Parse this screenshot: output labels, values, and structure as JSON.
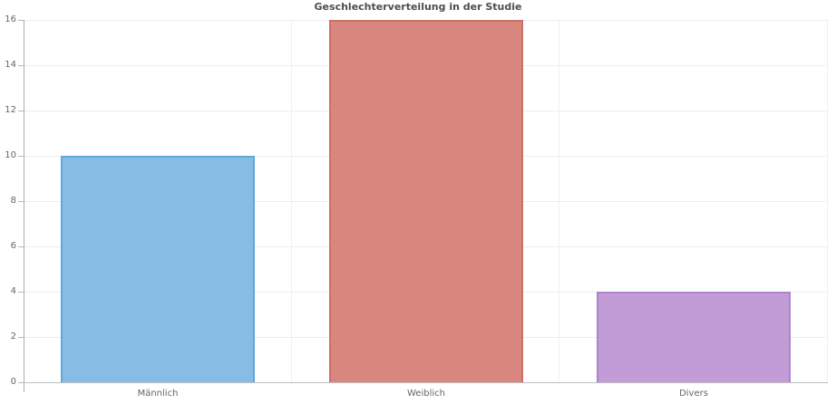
{
  "chart_data": {
    "type": "bar",
    "title": "Geschlechterverteilung in der Studie",
    "categories": [
      "Männlich",
      "Weiblich",
      "Divers"
    ],
    "values": [
      10,
      16,
      4
    ],
    "series": [
      {
        "name": "Männlich",
        "value": 10,
        "fill": "#87BDE4",
        "border": "#60A7DB"
      },
      {
        "name": "Weiblich",
        "value": 16,
        "fill": "#D9867F",
        "border": "#CE6F68"
      },
      {
        "name": "Divers",
        "value": 4,
        "fill": "#C19CD7",
        "border": "#AF82CA"
      }
    ],
    "xlabel": "",
    "ylabel": "",
    "ylim": [
      0,
      16
    ],
    "yticks": [
      0,
      2,
      4,
      6,
      8,
      10,
      12,
      14,
      16
    ],
    "grid": "on",
    "legend": "none",
    "colors": {
      "background": "#ffffff",
      "title_text": "#4d4d4d",
      "tick_text": "#666666",
      "axis_line": "#adadad",
      "gridline": "#ececec"
    }
  }
}
